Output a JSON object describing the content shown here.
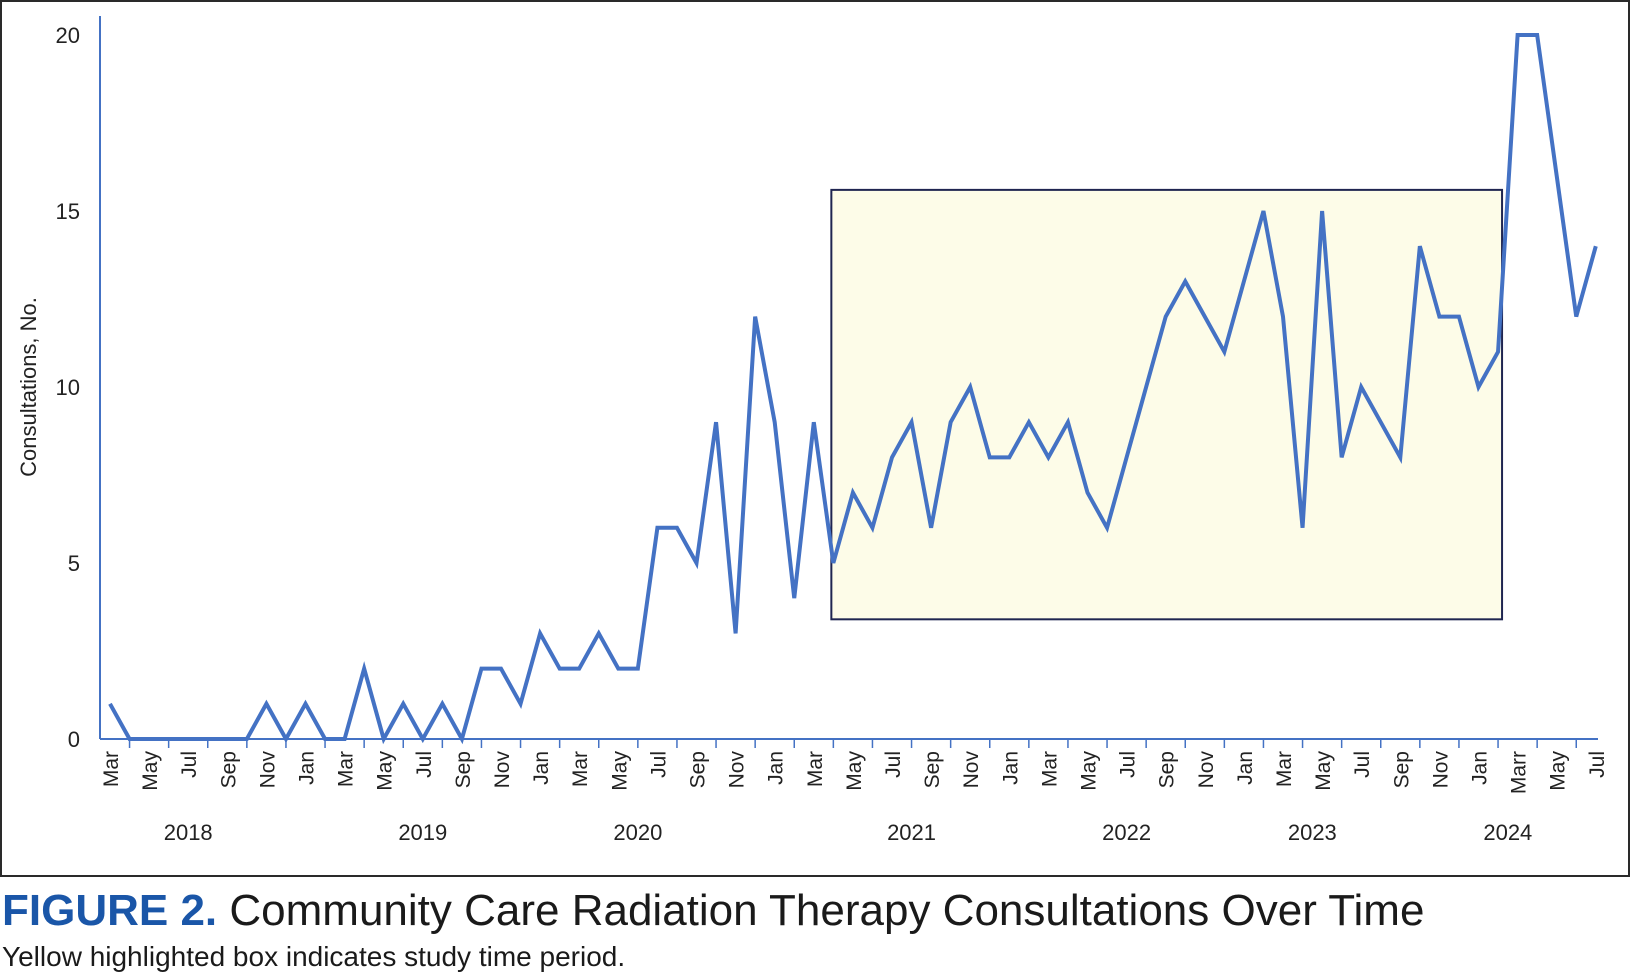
{
  "figure": {
    "label": "FIGURE 2.",
    "title": "Community Care Radiation Therapy Consultations Over Time",
    "note": "Yellow highlighted box indicates study time period."
  },
  "colors": {
    "line": "#4472c4",
    "axis": "#4472c4",
    "highlight_fill": "#fdfce8",
    "highlight_stroke": "#1f2550",
    "label_blue": "#1a56a8"
  },
  "chart_data": {
    "type": "line",
    "title": "",
    "xlabel": "",
    "ylabel": "Consultations, No.",
    "ylim": [
      0,
      20
    ],
    "yticks": [
      0,
      5,
      10,
      15,
      20
    ],
    "grid": false,
    "x_tick_labels": [
      "Mar",
      "May",
      "Jul",
      "Sep",
      "Nov",
      "Jan",
      "Mar",
      "May",
      "Jul",
      "Sep",
      "Nov",
      "Jan",
      "Mar",
      "May",
      "Jul",
      "Sep",
      "Nov",
      "Jan",
      "Mar",
      "May",
      "Jul",
      "Sep",
      "Nov",
      "Jan",
      "Mar",
      "May",
      "Jul",
      "Sep",
      "Nov",
      "Jan",
      "Mar",
      "May",
      "Jul",
      "Sep",
      "Nov",
      "Jan",
      "Marr",
      "May",
      "Jul"
    ],
    "year_labels": [
      {
        "label": "2018",
        "month_index": 4
      },
      {
        "label": "2019",
        "month_index": 16
      },
      {
        "label": "2020",
        "month_index": 27
      },
      {
        "label": "2021",
        "month_index": 41
      },
      {
        "label": "2022",
        "month_index": 52
      },
      {
        "label": "2023",
        "month_index": 61.5
      },
      {
        "label": "2024",
        "month_index": 71.5
      }
    ],
    "series": [
      {
        "name": "Consultations",
        "start": "2018-03",
        "values": [
          1,
          0,
          0,
          0,
          0,
          0,
          0,
          0,
          1,
          0,
          1,
          0,
          0,
          2,
          0,
          1,
          0,
          1,
          0,
          2,
          2,
          1,
          3,
          2,
          2,
          3,
          2,
          2,
          6,
          6,
          5,
          9,
          3,
          12,
          9,
          4,
          9,
          5,
          7,
          6,
          8,
          9,
          6,
          9,
          10,
          8,
          8,
          9,
          8,
          9,
          7,
          6,
          8,
          10,
          12,
          13,
          12,
          11,
          13,
          15,
          12,
          6,
          15,
          8,
          10,
          9,
          8,
          14,
          12,
          12,
          10,
          11,
          20,
          20,
          16,
          12,
          14
        ]
      }
    ],
    "highlight": {
      "label": "Study time period",
      "start_month_index": 37,
      "end_month_index": 71,
      "y_range": [
        3.4,
        15.6
      ]
    }
  }
}
